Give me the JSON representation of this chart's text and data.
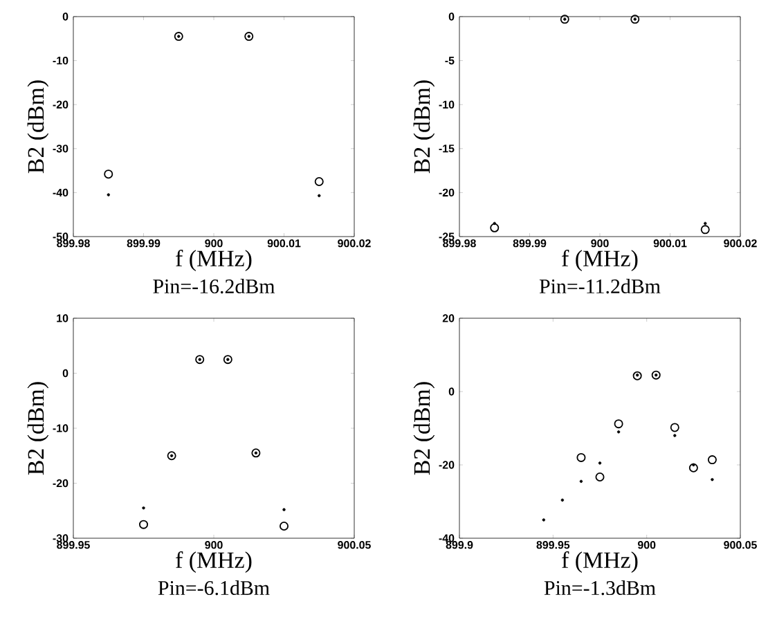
{
  "chart_data": [
    {
      "type": "scatter",
      "title": "Pin=-16.2dBm",
      "xlabel": "f (MHz)",
      "ylabel": "B2 (dBm)",
      "xlim": [
        899.98,
        900.02
      ],
      "xticks": [
        899.98,
        899.99,
        900,
        900.01,
        900.02
      ],
      "ylim": [
        -50,
        0
      ],
      "yticks": [
        -50,
        -40,
        -30,
        -20,
        -10,
        0
      ],
      "series": [
        {
          "color": "#000000",
          "marker": "circle",
          "x": [
            899.985,
            899.995,
            900.005,
            900.015
          ],
          "values": [
            -35.8,
            -4.5,
            -4.5,
            -37.5
          ]
        },
        {
          "color": "#000000",
          "marker": "dot",
          "x": [
            899.985,
            899.995,
            900.005,
            900.015
          ],
          "values": [
            -40.5,
            -4.5,
            -4.5,
            -40.7
          ]
        }
      ]
    },
    {
      "type": "scatter",
      "title": "Pin=-11.2dBm",
      "xlabel": "f (MHz)",
      "ylabel": "B2 (dBm)",
      "xlim": [
        899.98,
        900.02
      ],
      "xticks": [
        899.98,
        899.99,
        900,
        900.01,
        900.02
      ],
      "ylim": [
        -25,
        0
      ],
      "yticks": [
        -25,
        -20,
        -15,
        -10,
        -5,
        0
      ],
      "series": [
        {
          "color": "#000000",
          "marker": "circle",
          "x": [
            899.985,
            899.995,
            900.005,
            900.015
          ],
          "values": [
            -24,
            -0.3,
            -0.3,
            -24.2
          ]
        },
        {
          "color": "#000000",
          "marker": "dot",
          "x": [
            899.985,
            899.995,
            900.005,
            900.015
          ],
          "values": [
            -23.5,
            -0.3,
            -0.3,
            -23.5
          ]
        }
      ]
    },
    {
      "type": "scatter",
      "title": "Pin=-6.1dBm",
      "xlabel": "f (MHz)",
      "ylabel": "B2 (dBm)",
      "xlim": [
        899.95,
        900.05
      ],
      "xticks": [
        899.95,
        900,
        900.05
      ],
      "ylim": [
        -30,
        10
      ],
      "yticks": [
        -30,
        -20,
        -10,
        0,
        10
      ],
      "series": [
        {
          "color": "#000000",
          "marker": "circle",
          "x": [
            899.975,
            899.985,
            899.995,
            900.005,
            900.015,
            900.025
          ],
          "values": [
            -27.5,
            -15,
            2.5,
            2.5,
            -14.5,
            -27.8
          ]
        },
        {
          "color": "#000000",
          "marker": "dot",
          "x": [
            899.975,
            899.985,
            899.995,
            900.005,
            900.015,
            900.025
          ],
          "values": [
            -24.5,
            -15,
            2.5,
            2.5,
            -14.5,
            -24.8
          ]
        }
      ]
    },
    {
      "type": "scatter",
      "title": "Pin=-1.3dBm",
      "xlabel": "f (MHz)",
      "ylabel": "B2 (dBm)",
      "xlim": [
        899.9,
        900.05
      ],
      "xticks": [
        899.9,
        899.95,
        900,
        900.05
      ],
      "ylim": [
        -40,
        20
      ],
      "yticks": [
        -40,
        -20,
        0,
        20
      ],
      "series": [
        {
          "color": "#000000",
          "marker": "circle",
          "x": [
            899.965,
            899.975,
            899.985,
            899.995,
            900.005,
            900.015,
            900.025,
            900.035
          ],
          "values": [
            -18,
            -23.3,
            -8.8,
            4.3,
            4.5,
            -9.8,
            -20.8,
            -18.6
          ]
        },
        {
          "color": "#000000",
          "marker": "dot",
          "x": [
            899.945,
            899.955,
            899.965,
            899.975,
            899.985,
            899.995,
            900.005,
            900.015,
            900.025,
            900.035
          ],
          "values": [
            -35,
            -29.6,
            -24.5,
            -19.5,
            -11,
            4.5,
            4.5,
            -12,
            -20,
            -24
          ]
        }
      ]
    }
  ]
}
